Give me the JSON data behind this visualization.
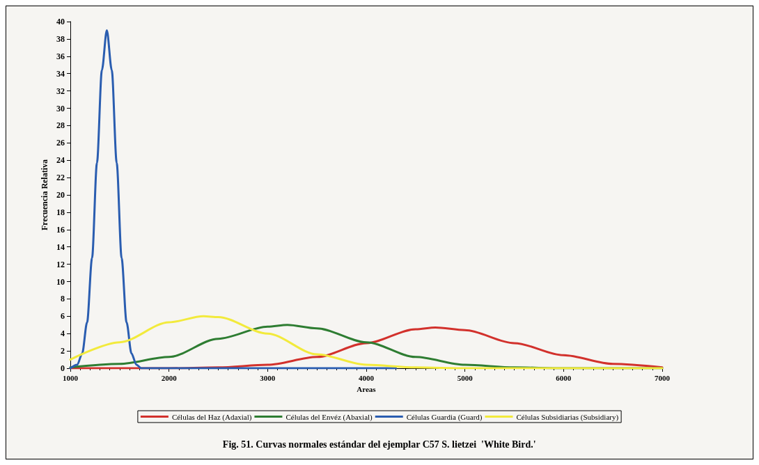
{
  "chart_data": {
    "type": "line",
    "xlabel": "Areas",
    "ylabel": "Frecuencia Relativa",
    "annotations": [
      "Fig. 51. Curvas normales estándar del ejemplar C57 S. lietzei  'White Bird.'"
    ],
    "xlim": [
      1000,
      7000
    ],
    "xticks": [
      1000,
      2000,
      3000,
      4000,
      5000,
      6000,
      7000
    ],
    "ylim": [
      0,
      40
    ],
    "yticks": [
      0,
      2,
      4,
      6,
      8,
      10,
      12,
      14,
      16,
      18,
      20,
      22,
      24,
      26,
      28,
      30,
      32,
      34,
      36,
      38,
      40
    ],
    "grid": false,
    "legend": "bottom",
    "marker": "none",
    "line_style": "solid",
    "series": [
      {
        "name": "Células del Haz (Adaxial)",
        "color": "#d2312c",
        "x": [
          1000,
          1500,
          2000,
          2500,
          3000,
          3500,
          4000,
          4500,
          4700,
          5000,
          5500,
          6000,
          6500,
          7000
        ],
        "values": [
          0,
          0,
          0,
          0.1,
          0.4,
          1.3,
          2.9,
          4.5,
          4.7,
          4.4,
          2.9,
          1.5,
          0.5,
          0.1
        ]
      },
      {
        "name": "Células del Envéz (Abaxial)",
        "color": "#2e7d32",
        "x": [
          1000,
          1500,
          2000,
          2500,
          3000,
          3200,
          3500,
          4000,
          4500,
          5000,
          5500,
          6000,
          7000
        ],
        "values": [
          0.1,
          0.5,
          1.3,
          3.4,
          4.8,
          5.0,
          4.6,
          3.0,
          1.3,
          0.4,
          0.1,
          0,
          0
        ]
      },
      {
        "name": "Células Guardia (Guard)",
        "color": "#2a5db0",
        "x": [
          1000,
          1070,
          1120,
          1170,
          1220,
          1270,
          1320,
          1370,
          1420,
          1470,
          1520,
          1570,
          1620,
          1670,
          1720,
          1800,
          4300
        ],
        "values": [
          0,
          0.4,
          1.7,
          5.3,
          12.7,
          23.7,
          34.4,
          39,
          34.4,
          23.7,
          12.7,
          5.3,
          1.7,
          0.4,
          0,
          0,
          0
        ]
      },
      {
        "name": "Células Subsidiarias (Subsidiary)",
        "color": "#f2ea3c",
        "x": [
          1000,
          1500,
          2000,
          2350,
          2500,
          3000,
          3500,
          4000,
          4500,
          5000,
          6000,
          7000
        ],
        "values": [
          1.0,
          3.0,
          5.3,
          6.0,
          5.9,
          4.0,
          1.6,
          0.4,
          0.1,
          0,
          0,
          0
        ]
      }
    ]
  }
}
